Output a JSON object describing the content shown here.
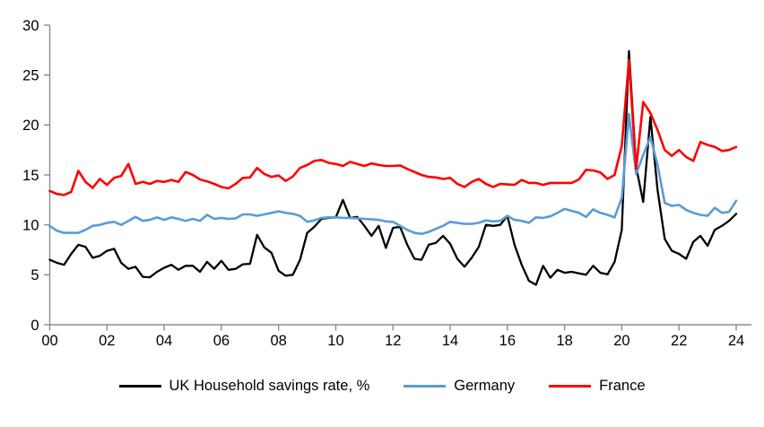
{
  "legend": [
    {
      "label": "UK Household savings rate, %",
      "color": "#000000"
    },
    {
      "label": "Germany",
      "color": "#5B9BD5"
    },
    {
      "label": "France",
      "color": "#FF0000"
    }
  ],
  "chart_data": {
    "type": "line",
    "title": "",
    "xlabel": "",
    "ylabel": "",
    "ylim": [
      0,
      30
    ],
    "y_ticks": [
      0,
      5,
      10,
      15,
      20,
      25,
      30
    ],
    "x_tick_labels": [
      "00",
      "02",
      "04",
      "06",
      "08",
      "10",
      "12",
      "14",
      "16",
      "18",
      "20",
      "22",
      "24"
    ],
    "x_start": "2000Q1",
    "x_end": "2024Q1",
    "frequency": "quarterly",
    "grid": "off",
    "legend_position": "bottom",
    "axis_color": "#8C8C8C",
    "series": [
      {
        "name": "UK Household savings rate, %",
        "color": "#000000",
        "values": [
          6.5,
          6.2,
          6.0,
          7.1,
          8.0,
          7.8,
          6.7,
          6.9,
          7.4,
          7.6,
          6.2,
          5.6,
          5.8,
          4.8,
          4.75,
          5.3,
          5.7,
          6.0,
          5.5,
          5.9,
          5.9,
          5.3,
          6.3,
          5.6,
          6.4,
          5.5,
          5.6,
          6.05,
          6.1,
          9.0,
          7.75,
          7.2,
          5.4,
          4.9,
          5.0,
          6.5,
          9.2,
          9.8,
          10.6,
          10.7,
          10.75,
          12.5,
          10.7,
          10.8,
          9.9,
          8.9,
          9.9,
          7.7,
          9.7,
          9.8,
          8.0,
          6.6,
          6.5,
          8.0,
          8.2,
          8.9,
          8.1,
          6.6,
          5.8,
          6.7,
          7.8,
          10.0,
          9.9,
          10.0,
          10.9,
          8.0,
          6.0,
          4.4,
          4.0,
          5.9,
          4.7,
          5.5,
          5.2,
          5.3,
          5.15,
          5.0,
          5.9,
          5.2,
          5.05,
          6.3,
          9.5,
          27.4,
          15.8,
          12.3,
          20.8,
          13.5,
          8.6,
          7.4,
          7.1,
          6.6,
          8.3,
          8.9,
          7.9,
          9.5,
          9.9,
          10.4,
          11.1
        ]
      },
      {
        "name": "Germany",
        "color": "#5B9BD5",
        "values": [
          9.9,
          9.4,
          9.2,
          9.2,
          9.2,
          9.5,
          9.9,
          10.0,
          10.2,
          10.3,
          10.0,
          10.4,
          10.8,
          10.4,
          10.5,
          10.75,
          10.5,
          10.75,
          10.6,
          10.4,
          10.6,
          10.4,
          11.0,
          10.6,
          10.7,
          10.6,
          10.65,
          11.05,
          11.05,
          10.9,
          11.05,
          11.2,
          11.35,
          11.2,
          11.1,
          10.9,
          10.3,
          10.45,
          10.7,
          10.75,
          10.75,
          10.7,
          10.7,
          10.65,
          10.6,
          10.55,
          10.5,
          10.35,
          10.3,
          9.9,
          9.5,
          9.2,
          9.1,
          9.3,
          9.6,
          9.9,
          10.3,
          10.2,
          10.1,
          10.1,
          10.2,
          10.45,
          10.35,
          10.4,
          10.9,
          10.5,
          10.4,
          10.2,
          10.75,
          10.7,
          10.85,
          11.2,
          11.6,
          11.4,
          11.2,
          10.8,
          11.55,
          11.2,
          11.0,
          10.75,
          12.7,
          21.1,
          15.1,
          17.0,
          18.8,
          16.0,
          12.2,
          11.9,
          12.0,
          11.5,
          11.2,
          11.0,
          10.9,
          11.7,
          11.2,
          11.3,
          12.4
        ]
      },
      {
        "name": "France",
        "color": "#FF0000",
        "values": [
          13.4,
          13.1,
          13.0,
          13.3,
          15.4,
          14.3,
          13.7,
          14.6,
          14.0,
          14.7,
          14.9,
          16.1,
          14.1,
          14.3,
          14.1,
          14.4,
          14.3,
          14.5,
          14.3,
          15.3,
          15.0,
          14.55,
          14.35,
          14.1,
          13.8,
          13.65,
          14.1,
          14.7,
          14.75,
          15.7,
          15.1,
          14.8,
          14.95,
          14.4,
          14.85,
          15.7,
          16.0,
          16.4,
          16.5,
          16.2,
          16.1,
          15.9,
          16.3,
          16.1,
          15.9,
          16.15,
          16.0,
          15.9,
          15.9,
          15.95,
          15.6,
          15.3,
          15.0,
          14.8,
          14.75,
          14.6,
          14.7,
          14.1,
          13.8,
          14.3,
          14.6,
          14.1,
          13.8,
          14.1,
          14.05,
          14.0,
          14.5,
          14.2,
          14.2,
          14.0,
          14.2,
          14.2,
          14.2,
          14.2,
          14.55,
          15.5,
          15.45,
          15.25,
          14.6,
          15.0,
          17.9,
          26.5,
          15.6,
          22.3,
          21.2,
          19.5,
          17.5,
          16.9,
          17.5,
          16.8,
          16.4,
          18.3,
          18.0,
          17.8,
          17.4,
          17.5,
          17.8
        ]
      }
    ]
  }
}
